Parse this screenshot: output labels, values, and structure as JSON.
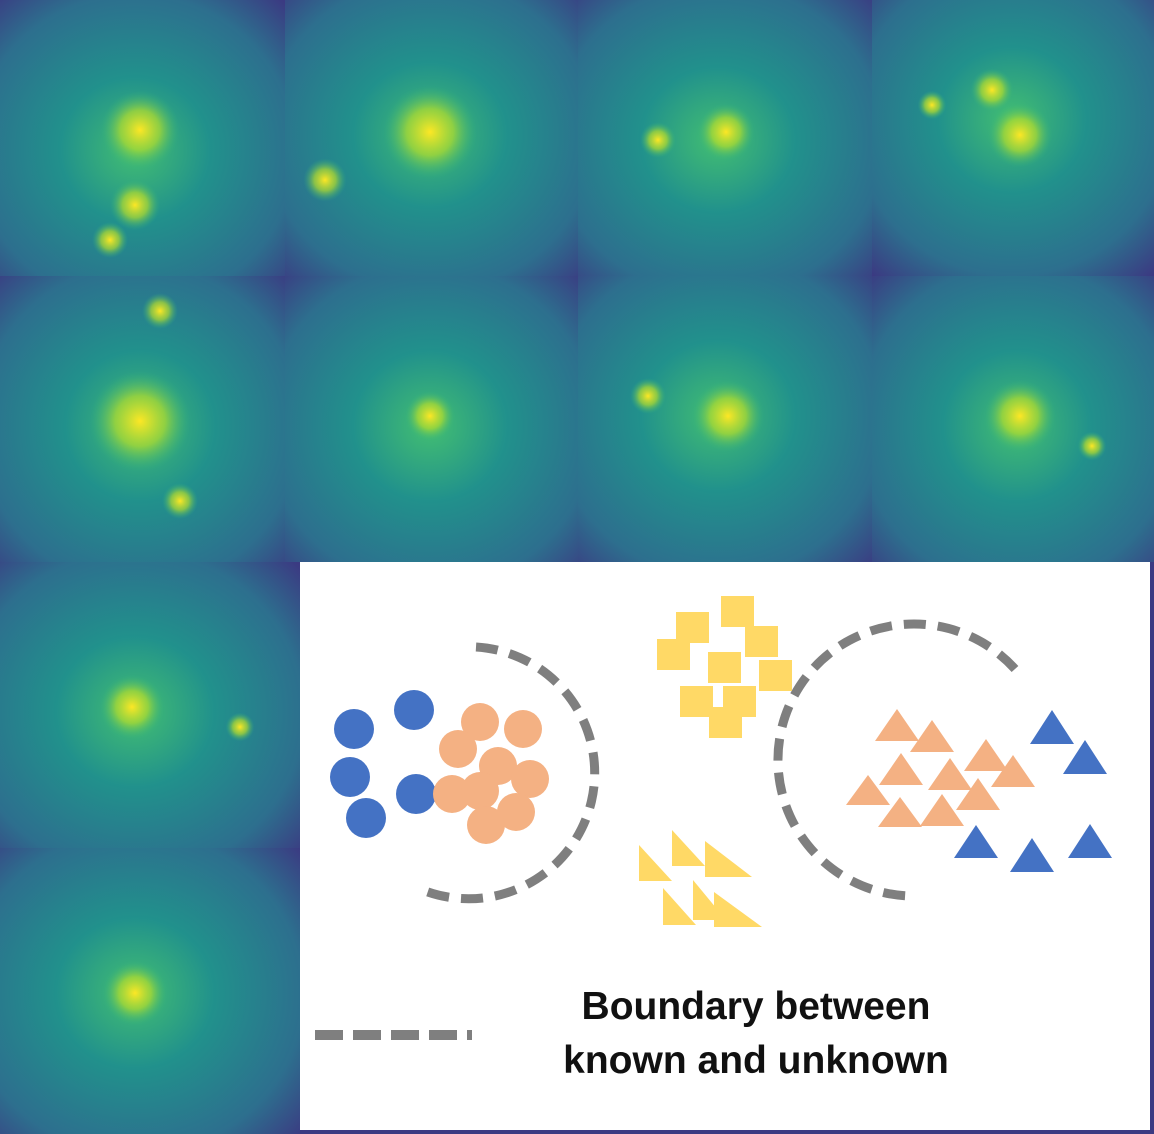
{
  "legend": {
    "line1": "Boundary between",
    "line2": "known and unknown"
  },
  "colors": {
    "known_circle": "#4472c4",
    "unknown_circle": "#f4b183",
    "square": "#ffd966",
    "yellow_triangle": "#ffd966",
    "unknown_triangle": "#f4b183",
    "known_triangle": "#4472c4",
    "boundary": "#7f7f7f",
    "heatmap_low": "#3b3a82",
    "heatmap_mid": "#21918c",
    "heatmap_high": "#fde725"
  },
  "heatmap_tiles": 10,
  "legend_icon": "dashed-line-icon"
}
